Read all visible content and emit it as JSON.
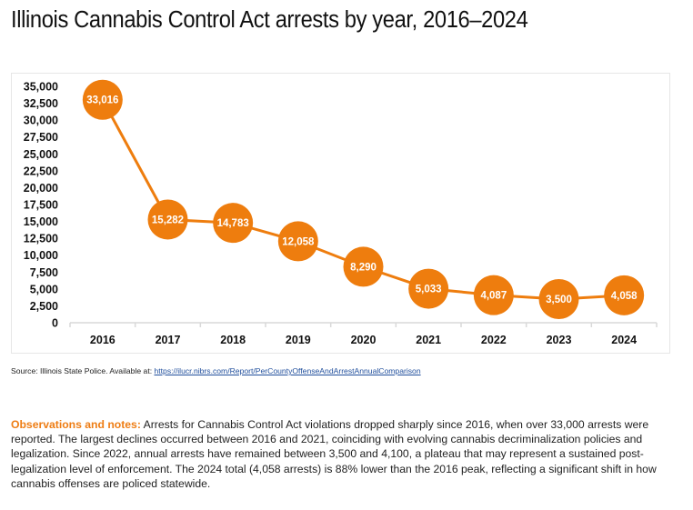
{
  "title": "Illinois Cannabis Control Act arrests by year, 2016–2024",
  "chart_data": {
    "type": "line",
    "title": "Illinois Cannabis Control Act arrests by year, 2016–2024",
    "xlabel": "",
    "ylabel": "",
    "categories": [
      "2016",
      "2017",
      "2018",
      "2019",
      "2020",
      "2021",
      "2022",
      "2023",
      "2024"
    ],
    "series": [
      {
        "name": "Arrests",
        "values": [
          33016,
          15282,
          14783,
          12058,
          8290,
          5033,
          4087,
          3500,
          4058
        ],
        "labels": [
          "33,016",
          "15,282",
          "14,783",
          "12,058",
          "8,290",
          "5,033",
          "4,087",
          "3,500",
          "4,058"
        ],
        "color": "#ee7d0e"
      }
    ],
    "yticks": [
      0,
      2500,
      5000,
      7500,
      10000,
      12500,
      15000,
      17500,
      20000,
      22500,
      25000,
      27500,
      30000,
      32500,
      35000
    ],
    "ytick_labels": [
      "0",
      "2,500",
      "5,000",
      "7,500",
      "10,000",
      "12,500",
      "15,000",
      "17,500",
      "20,000",
      "22,500",
      "25,000",
      "27,500",
      "30,000",
      "32,500",
      "35,000"
    ],
    "ylim": [
      0,
      35000
    ],
    "grid": false,
    "legend": "none",
    "marker": "large-circle-with-data-label"
  },
  "source": {
    "prefix": "Source: Illinois State Police. Available at: ",
    "link_text": "https://ilucr.nibrs.com/Report/PerCountyOffenseAndArrestAnnualComparison"
  },
  "notes": {
    "lead": "Observations and notes:",
    "body": " Arrests for Cannabis Control Act violations dropped sharply since 2016, when over 33,000 arrests were reported. The largest declines occurred between 2016 and 2021, coinciding with evolving cannabis decriminalization policies and legalization. Since 2022, annual arrests have remained between 3,500 and 4,100, a plateau that may represent a sustained post-legalization level of enforcement. The 2024 total (4,058 arrests) is 88% lower than the 2016 peak, reflecting a significant shift in how cannabis offenses are policed statewide."
  },
  "colors": {
    "accent": "#ee7d0e",
    "notes_lead": "#ee7d14",
    "link": "#1f4e9c",
    "frame": "#e6e6e6",
    "axis": "#d9d9d9"
  }
}
